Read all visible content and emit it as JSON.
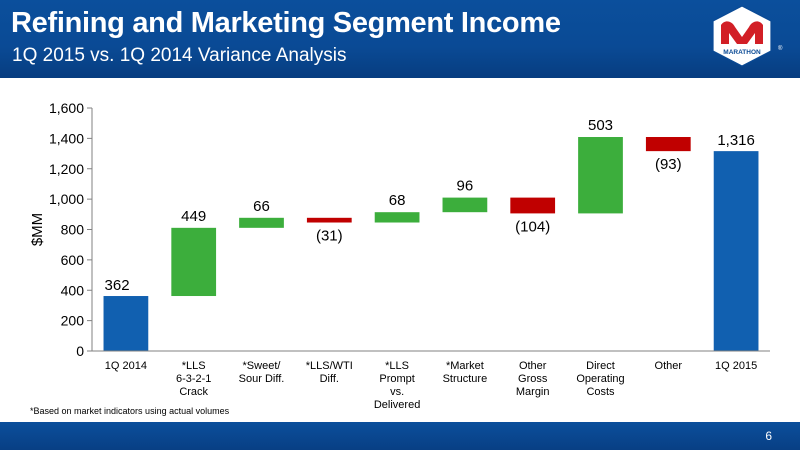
{
  "slide": {
    "title": "Refining and Marketing Segment Income",
    "subtitle": "1Q 2015 vs. 1Q 2014 Variance Analysis",
    "footnote": "*Based on market indicators using actual volumes",
    "page_number": "6",
    "logo_text": "MARATHON",
    "logo_tm": "®"
  },
  "colors": {
    "header_blue": "#0a4a95",
    "total_blue": "#1160b0",
    "increase_green": "#3cae3c",
    "decrease_red": "#c00000"
  },
  "chart_data": {
    "type": "bar",
    "subtype": "waterfall",
    "title": "",
    "xlabel": "",
    "ylabel": "$MM",
    "ylim": [
      0,
      1600
    ],
    "yticks": [
      0,
      200,
      400,
      600,
      800,
      1000,
      1200,
      1400,
      1600
    ],
    "ytick_labels": [
      "0",
      "200",
      "400",
      "600",
      "800",
      "1,000",
      "1,200",
      "1,400",
      "1,600"
    ],
    "grid": false,
    "categories": [
      [
        "1Q 2014"
      ],
      [
        "*LLS",
        "6-3-2-1",
        "Crack"
      ],
      [
        "*Sweet/",
        "Sour Diff."
      ],
      [
        "*LLS/WTI",
        "Diff."
      ],
      [
        "*LLS",
        "Prompt",
        "vs.",
        "Delivered"
      ],
      [
        "*Market",
        "Structure"
      ],
      [
        "Other",
        "Gross",
        "Margin"
      ],
      [
        "Direct",
        "Operating",
        "Costs"
      ],
      [
        "Other"
      ],
      [
        "1Q 2015"
      ]
    ],
    "values": [
      362,
      449,
      66,
      -31,
      68,
      96,
      -104,
      503,
      -93,
      1316
    ],
    "kinds": [
      "total",
      "delta",
      "delta",
      "delta",
      "delta",
      "delta",
      "delta",
      "delta",
      "delta",
      "total"
    ],
    "data_labels": [
      "362",
      "449",
      "66",
      "(31)",
      "68",
      "96",
      "(104)",
      "503",
      "(93)",
      "1,316"
    ]
  }
}
